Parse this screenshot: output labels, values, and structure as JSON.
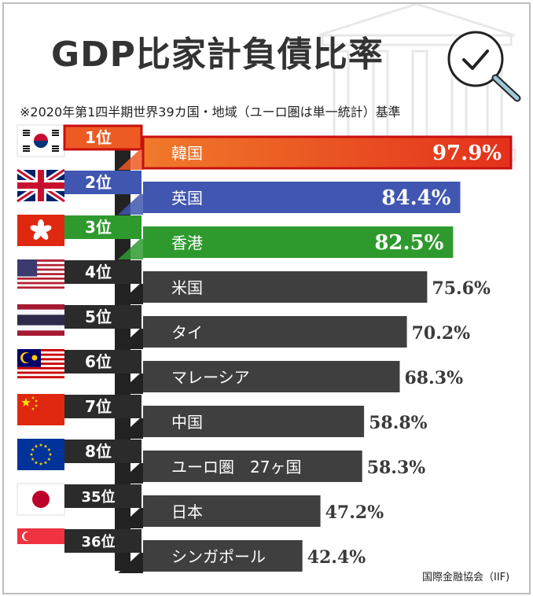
{
  "title": "GDP比家計負債比率",
  "subtitle": "※2020年第1四半期世界39カ国・地域（ユーロ圏は単一統計）基準",
  "source": "国際金融協会（IIF)",
  "colors": {
    "korea_bar": "#ee5a24",
    "korea_border": "#c81010",
    "uk_bar": "#4056b0",
    "hk_bar": "#2e9a2e",
    "default_bar": "#3f3f3f",
    "rank_default": "#2b2b2b",
    "value_text": "#3a3a3a"
  },
  "chart_data": {
    "type": "bar",
    "orientation": "horizontal",
    "title": "GDP比家計負債比率",
    "unit": "%",
    "rows": [
      {
        "rank": "1位",
        "country": "韓国",
        "value": 97.9,
        "label": "97.9%",
        "flag": "korea-flag"
      },
      {
        "rank": "2位",
        "country": "英国",
        "value": 84.4,
        "label": "84.4%",
        "flag": "uk-flag"
      },
      {
        "rank": "3位",
        "country": "香港",
        "value": 82.5,
        "label": "82.5%",
        "flag": "hong-kong-flag"
      },
      {
        "rank": "4位",
        "country": "米国",
        "value": 75.6,
        "label": "75.6%",
        "flag": "us-flag"
      },
      {
        "rank": "5位",
        "country": "タイ",
        "value": 70.2,
        "label": "70.2%",
        "flag": "thailand-flag"
      },
      {
        "rank": "6位",
        "country": "マレーシア",
        "value": 68.3,
        "label": "68.3%",
        "flag": "malaysia-flag"
      },
      {
        "rank": "7位",
        "country": "中国",
        "value": 58.8,
        "label": "58.8%",
        "flag": "china-flag"
      },
      {
        "rank": "8位",
        "country": "ユーロ圏　27ヶ国",
        "value": 58.3,
        "label": "58.3%",
        "flag": "eu-flag"
      },
      {
        "rank": "35位",
        "country": "日本",
        "value": 47.2,
        "label": "47.2%",
        "flag": "japan-flag"
      },
      {
        "rank": "36位",
        "country": "シンガポール",
        "value": 42.4,
        "label": "42.4%",
        "flag": "singapore-flag"
      }
    ]
  }
}
